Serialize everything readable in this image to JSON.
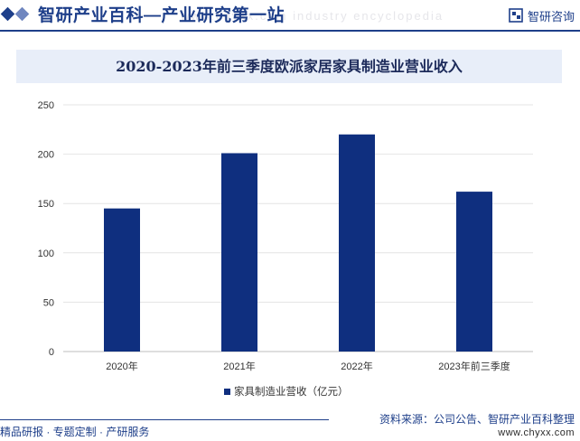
{
  "header": {
    "brand_title": "智研产业百科—产业研究第一站",
    "watermark": "www.chyxx.com industry encyclopedia",
    "logo_text": "智研咨询",
    "colors": {
      "primary": "#1e3f8a",
      "secondary": "#6f86bf",
      "band": "#e8eef9"
    },
    "logo_icon": "zhiyan-logo-icon"
  },
  "chart_data": {
    "type": "bar",
    "title": "2020-2023年前三季度欧派家居家具制造业营业收入",
    "categories": [
      "2020年",
      "2021年",
      "2022年",
      "2023年前三季度"
    ],
    "series": [
      {
        "name": "家具制造业营收（亿元）",
        "values": [
          145,
          201,
          220,
          162
        ],
        "color": "#0f2f7f"
      }
    ],
    "ylim": [
      0,
      250
    ],
    "yticks": [
      0,
      50,
      100,
      150,
      200,
      250
    ],
    "xlabel": "",
    "ylabel": "",
    "grid": true,
    "legend_position": "bottom"
  },
  "footer": {
    "left_text": "精品研报 · 专题定制 · 产研服务",
    "source_text": "资料来源：公司公告、智研产业百科整理",
    "url_text": "www.chyxx.com"
  }
}
